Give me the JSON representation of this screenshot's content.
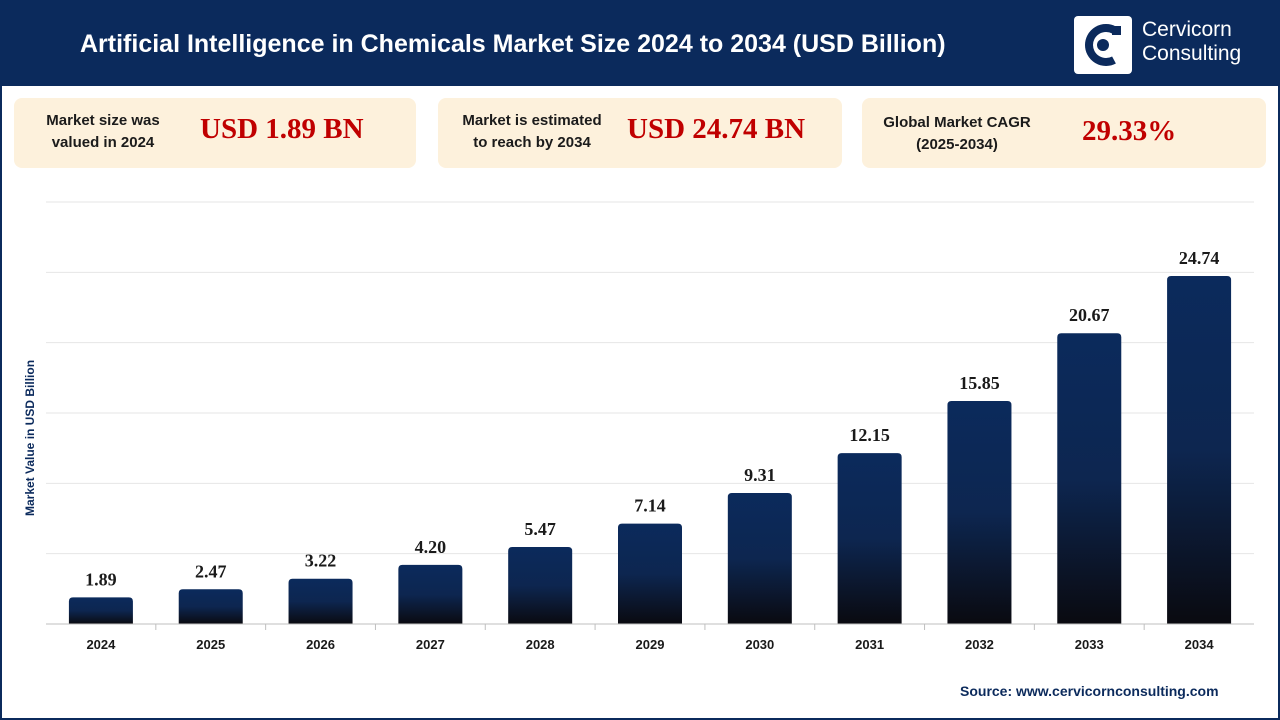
{
  "header": {
    "title": "Artificial Intelligence in Chemicals Market Size 2024 to 2034 (USD Billion)",
    "logo_line1": "Cervicorn",
    "logo_line2": "Consulting"
  },
  "cards": [
    {
      "label_line1": "Market size was",
      "label_line2": "valued in 2024",
      "value": "USD 1.89 BN"
    },
    {
      "label_line1": "Market is estimated",
      "label_line2": "to reach by 2034",
      "value": "USD 24.74 BN"
    },
    {
      "label_line1": "Global Market CAGR",
      "label_line2": "(2025-2034)",
      "value": "29.33%"
    }
  ],
  "colors": {
    "navy": "#0b2a5c",
    "bar_top": "#0b2a5c",
    "bar_bottom": "#0a0a10",
    "value_red": "#c00000",
    "card_bg": "#fdf1dc"
  },
  "chart_data": {
    "type": "bar",
    "title": "",
    "xlabel": "",
    "ylabel": "Market Value in USD Billion",
    "categories": [
      "2024",
      "2025",
      "2026",
      "2027",
      "2028",
      "2029",
      "2030",
      "2031",
      "2032",
      "2033",
      "2034"
    ],
    "values": [
      1.89,
      2.47,
      3.22,
      4.2,
      5.47,
      7.14,
      9.31,
      12.15,
      15.85,
      20.67,
      24.74
    ],
    "value_labels": [
      "1.89",
      "2.47",
      "3.22",
      "4.20",
      "5.47",
      "7.14",
      "9.31",
      "12.15",
      "15.85",
      "20.67",
      "24.74"
    ],
    "ylim": [
      0,
      30
    ],
    "grid": true
  },
  "source": "Source: www.cervicornconsulting.com"
}
